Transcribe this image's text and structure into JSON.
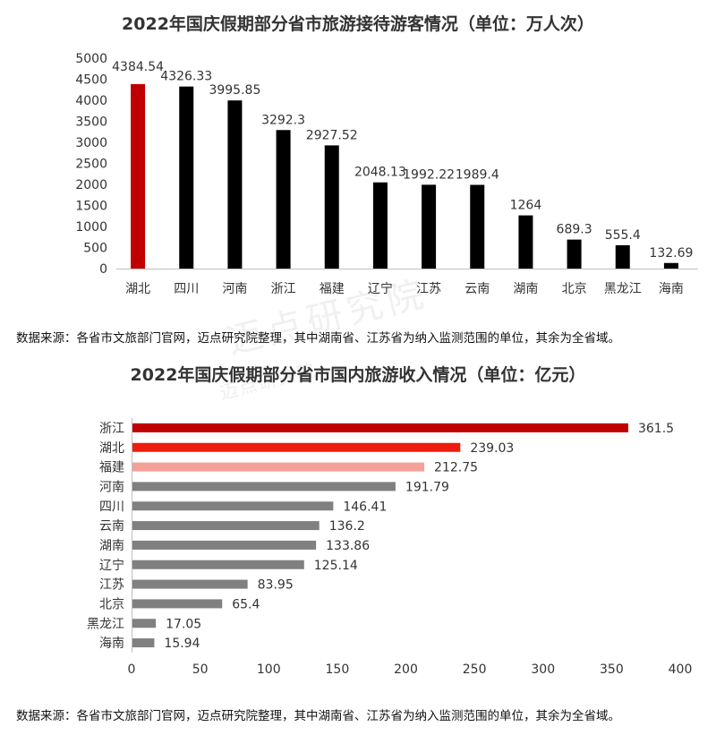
{
  "chart_data": [
    {
      "type": "bar",
      "title": "2022年国庆假期部分省市旅游接待游客情况（单位：万人次）",
      "categories": [
        "湖北",
        "四川",
        "河南",
        "浙江",
        "福建",
        "辽宁",
        "江苏",
        "云南",
        "湖南",
        "北京",
        "黑龙江",
        "海南"
      ],
      "values": [
        4384.54,
        4326.33,
        3995.85,
        3292.3,
        2927.52,
        2048.13,
        1992.22,
        1989.4,
        1264,
        689.3,
        555.4,
        132.69
      ],
      "value_labels": [
        "4384.54",
        "4326.33",
        "3995.85",
        "3292.3",
        "2927.52",
        "2048.13",
        "1992.22",
        "1989.4",
        "1264",
        "689.3",
        "555.4",
        "132.69"
      ],
      "ylim": [
        0,
        5000
      ],
      "yticks": [
        0,
        500,
        1000,
        1500,
        2000,
        2500,
        3000,
        3500,
        4000,
        4500,
        5000
      ],
      "colors": [
        "#c00000",
        "#000000",
        "#000000",
        "#000000",
        "#000000",
        "#000000",
        "#000000",
        "#000000",
        "#000000",
        "#000000",
        "#000000",
        "#000000"
      ],
      "source": "数据来源：各省市文旅部门官网，迈点研究院整理，其中湖南省、江苏省为纳入监测范围的单位，其余为全省域。"
    },
    {
      "type": "bar",
      "orientation": "horizontal",
      "title": "2022年国庆假期部分省市国内旅游收入情况（单位：亿元）",
      "categories": [
        "浙江",
        "湖北",
        "福建",
        "河南",
        "四川",
        "云南",
        "湖南",
        "辽宁",
        "江苏",
        "北京",
        "黑龙江",
        "海南"
      ],
      "values": [
        361.5,
        239.03,
        212.75,
        191.79,
        146.41,
        136.2,
        133.86,
        125.14,
        83.95,
        65.4,
        17.05,
        15.94
      ],
      "value_labels": [
        "361.5",
        "239.03",
        "212.75",
        "191.79",
        "146.41",
        "136.2",
        "133.86",
        "125.14",
        "83.95",
        "65.4",
        "17.05",
        "15.94"
      ],
      "xlim": [
        0,
        400
      ],
      "xticks": [
        0,
        50,
        100,
        150,
        200,
        250,
        300,
        350,
        400
      ],
      "colors": [
        "#c00000",
        "#ee1c0c",
        "#f4a19a",
        "#808080",
        "#808080",
        "#808080",
        "#808080",
        "#808080",
        "#808080",
        "#808080",
        "#808080",
        "#808080"
      ],
      "source": "数据来源：各省市文旅部门官网，迈点研究院整理，其中湖南省、江苏省为纳入监测范围的单位，其余为全省域。"
    }
  ],
  "watermark": {
    "text": "迈点研究院",
    "small_text": "迈点研究院"
  }
}
